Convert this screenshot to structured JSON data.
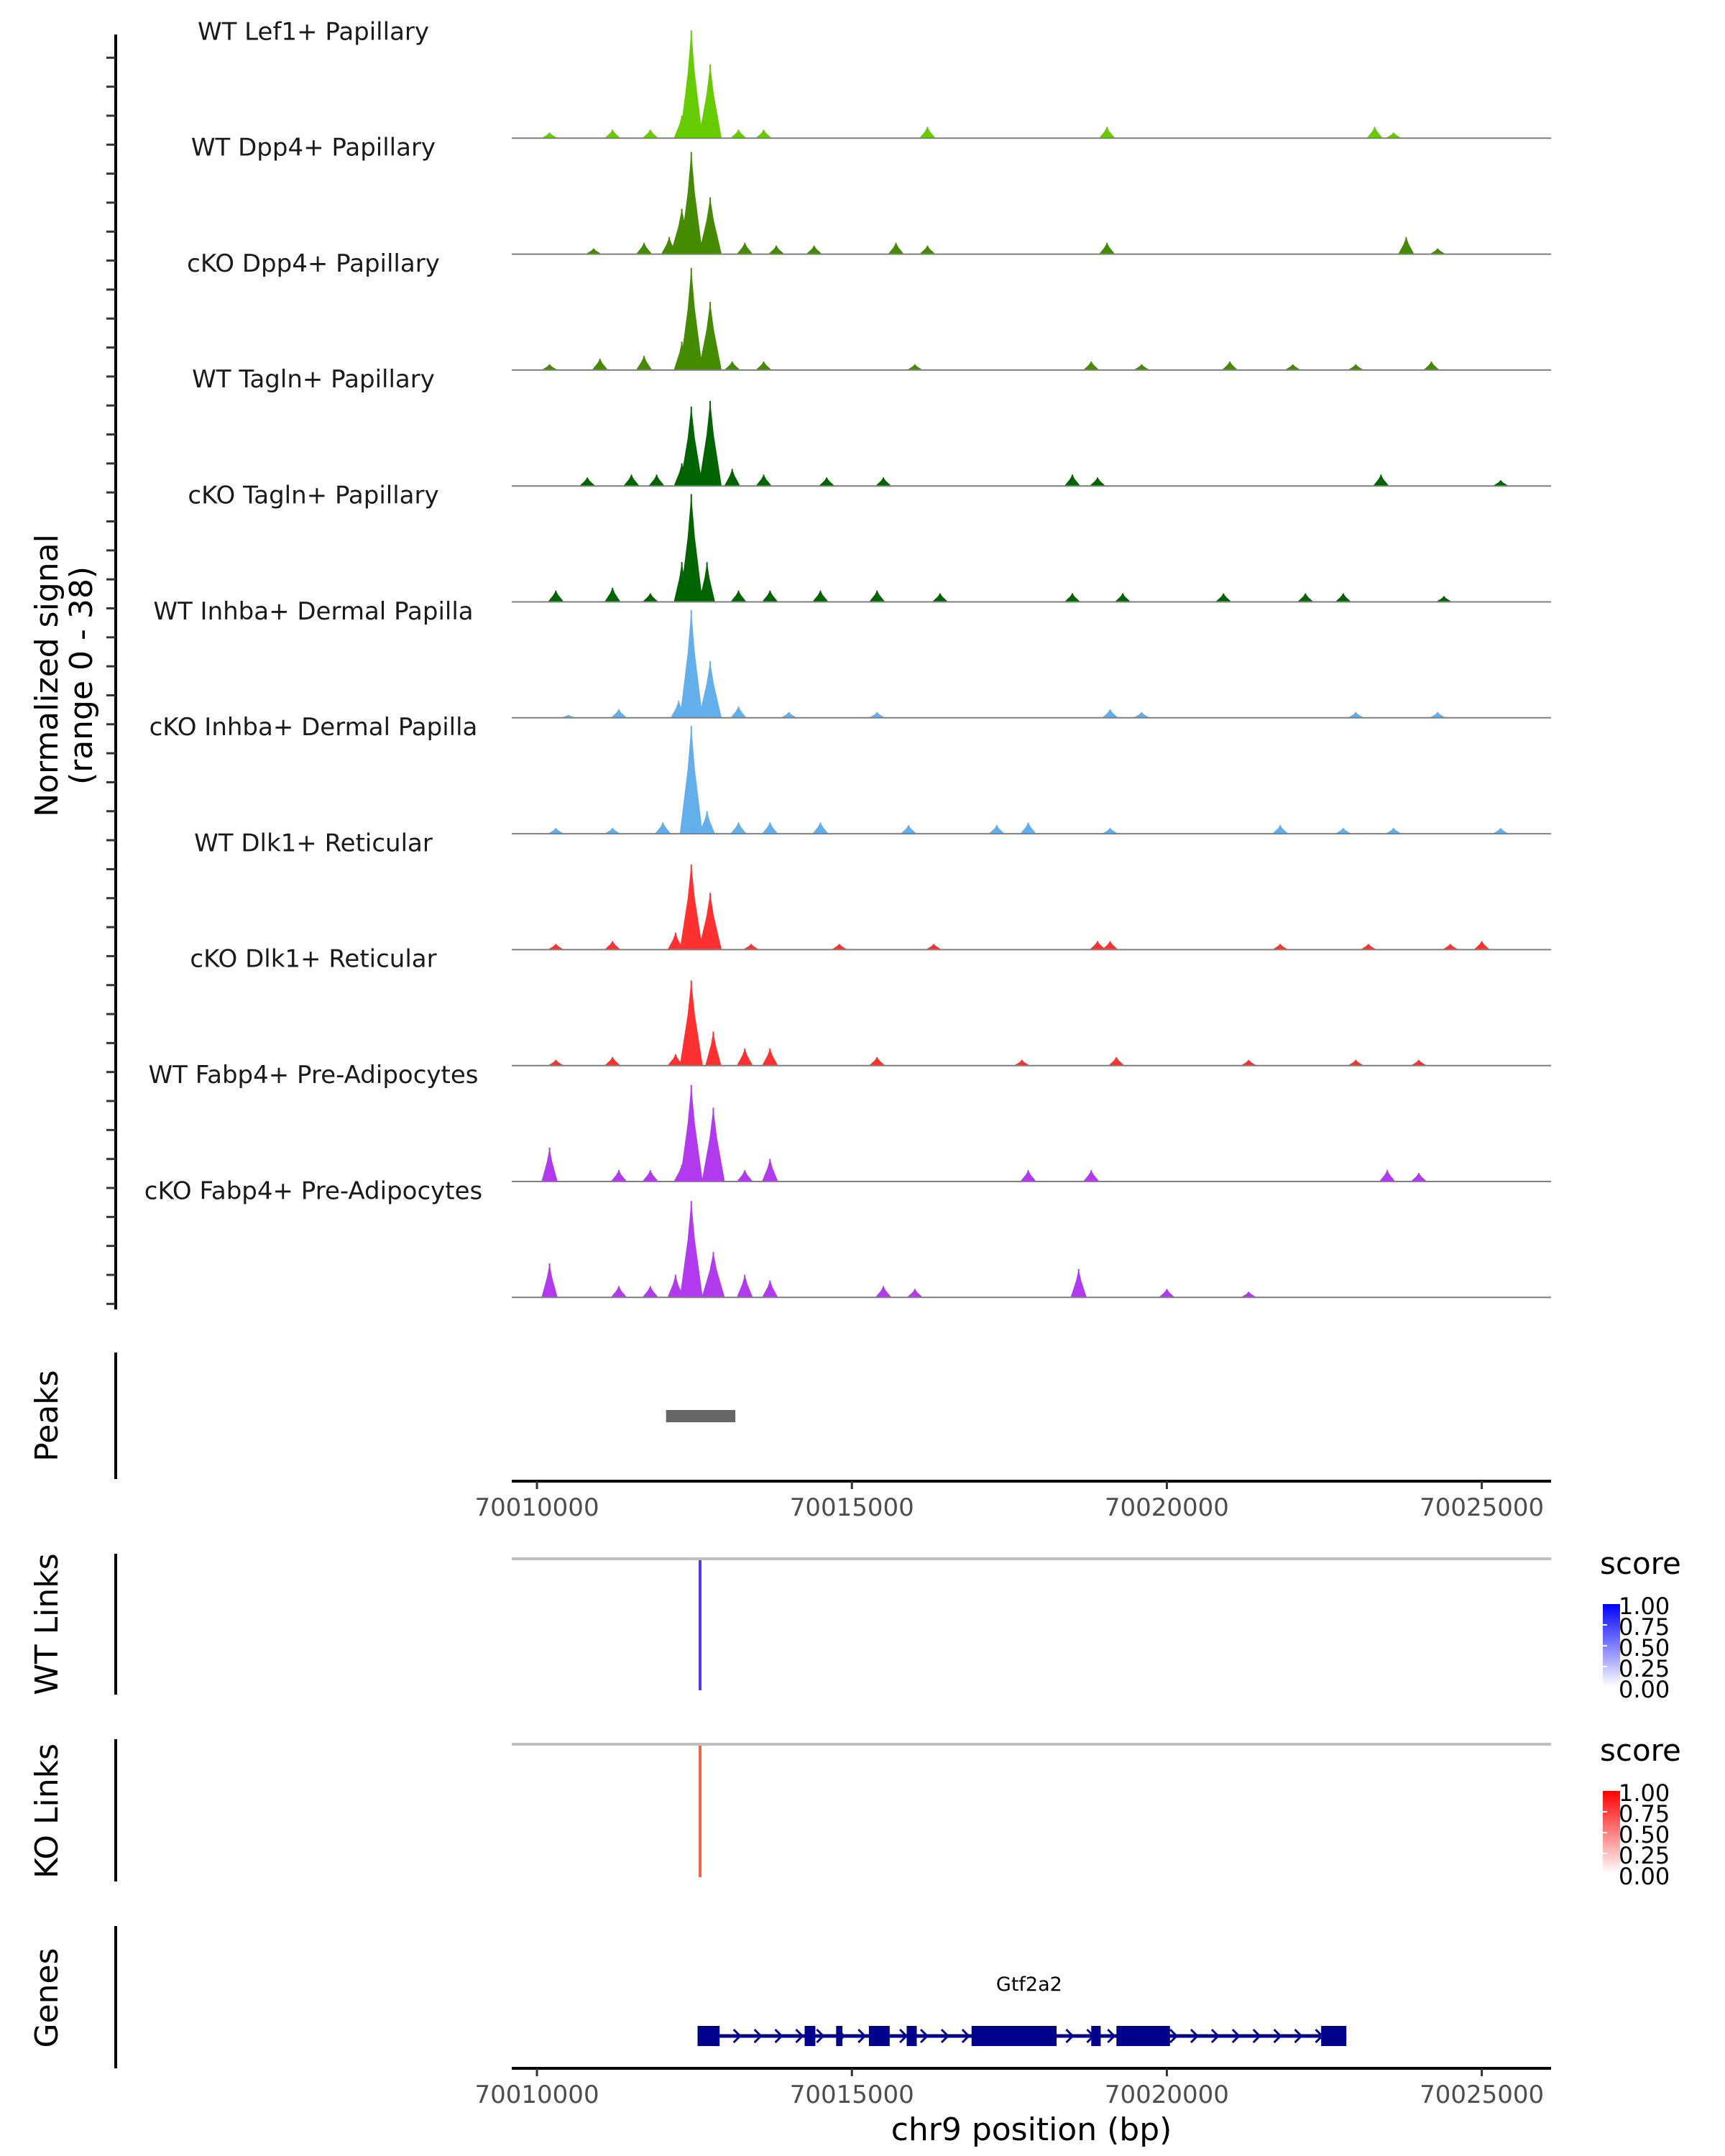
{
  "chart_data": {
    "type": "area",
    "title": "",
    "xlabel": "chr9 position (bp)",
    "ylabel": "Normalized signal\n(range 0 - 38)",
    "ylabel_lines": [
      "Normalized signal",
      "(range 0 - 38)"
    ],
    "xlim": [
      70009600,
      70026100
    ],
    "ylim": [
      0,
      38
    ],
    "x_ticks": [
      70010000,
      70015000,
      70020000,
      70025000
    ],
    "x_tick_labels": [
      "70010000",
      "70015000",
      "70020000",
      "70025000"
    ],
    "grid": false,
    "coverage_tracks": [
      {
        "name": "WT Lef1+ Papillary",
        "color": "#66CC00",
        "peaks": [
          [
            70010200,
            2
          ],
          [
            70011200,
            3
          ],
          [
            70011800,
            3
          ],
          [
            70012300,
            8
          ],
          [
            70012450,
            38
          ],
          [
            70012750,
            26
          ],
          [
            70013200,
            3
          ],
          [
            70013600,
            3
          ],
          [
            70016200,
            4
          ],
          [
            70019050,
            4
          ],
          [
            70023300,
            4
          ],
          [
            70023600,
            2
          ]
        ]
      },
      {
        "name": "WT Dpp4+ Papillary",
        "color": "#458B00",
        "peaks": [
          [
            70010900,
            2
          ],
          [
            70011700,
            4
          ],
          [
            70012100,
            6
          ],
          [
            70012300,
            16
          ],
          [
            70012450,
            36
          ],
          [
            70012750,
            20
          ],
          [
            70013300,
            4
          ],
          [
            70013800,
            3
          ],
          [
            70014400,
            3
          ],
          [
            70015700,
            4
          ],
          [
            70016200,
            3
          ],
          [
            70019050,
            4
          ],
          [
            70023800,
            6
          ],
          [
            70024300,
            2
          ]
        ]
      },
      {
        "name": "cKO Dpp4+ Papillary",
        "color": "#458B00",
        "peaks": [
          [
            70010200,
            2
          ],
          [
            70011000,
            4
          ],
          [
            70011700,
            5
          ],
          [
            70012300,
            10
          ],
          [
            70012450,
            36
          ],
          [
            70012750,
            24
          ],
          [
            70013100,
            3
          ],
          [
            70013600,
            3
          ],
          [
            70016000,
            2
          ],
          [
            70018800,
            3
          ],
          [
            70019600,
            2
          ],
          [
            70021000,
            3
          ],
          [
            70022000,
            2
          ],
          [
            70023000,
            2
          ],
          [
            70024200,
            3
          ]
        ]
      },
      {
        "name": "WT Tagln+ Papillary",
        "color": "#006400",
        "peaks": [
          [
            70010800,
            3
          ],
          [
            70011500,
            4
          ],
          [
            70011900,
            4
          ],
          [
            70012300,
            8
          ],
          [
            70012450,
            28
          ],
          [
            70012750,
            30
          ],
          [
            70013100,
            6
          ],
          [
            70013600,
            4
          ],
          [
            70014600,
            3
          ],
          [
            70015500,
            3
          ],
          [
            70018500,
            4
          ],
          [
            70018900,
            3
          ],
          [
            70023400,
            4
          ],
          [
            70025300,
            2
          ]
        ]
      },
      {
        "name": "cKO Tagln+ Papillary",
        "color": "#006400",
        "peaks": [
          [
            70010300,
            4
          ],
          [
            70011200,
            5
          ],
          [
            70011800,
            3
          ],
          [
            70012300,
            14
          ],
          [
            70012450,
            38
          ],
          [
            70012700,
            14
          ],
          [
            70013200,
            4
          ],
          [
            70013700,
            4
          ],
          [
            70014500,
            4
          ],
          [
            70015400,
            4
          ],
          [
            70016400,
            3
          ],
          [
            70018500,
            3
          ],
          [
            70019300,
            3
          ],
          [
            70020900,
            3
          ],
          [
            70022200,
            3
          ],
          [
            70022800,
            3
          ],
          [
            70024400,
            2
          ]
        ]
      },
      {
        "name": "WT Inhba+ Dermal Papilla",
        "color": "#63AFEB",
        "peaks": [
          [
            70010500,
            1
          ],
          [
            70011300,
            3
          ],
          [
            70012250,
            6
          ],
          [
            70012450,
            38
          ],
          [
            70012750,
            20
          ],
          [
            70013200,
            4
          ],
          [
            70014000,
            2
          ],
          [
            70015400,
            2
          ],
          [
            70019100,
            3
          ],
          [
            70019600,
            2
          ],
          [
            70023000,
            2
          ],
          [
            70024300,
            2
          ]
        ]
      },
      {
        "name": "cKO Inhba+ Dermal Papilla",
        "color": "#63AFEB",
        "peaks": [
          [
            70010300,
            2
          ],
          [
            70011200,
            2
          ],
          [
            70012000,
            4
          ],
          [
            70012450,
            38
          ],
          [
            70012700,
            8
          ],
          [
            70013200,
            4
          ],
          [
            70013700,
            4
          ],
          [
            70014500,
            4
          ],
          [
            70015900,
            3
          ],
          [
            70017300,
            3
          ],
          [
            70017800,
            4
          ],
          [
            70019100,
            2
          ],
          [
            70021800,
            3
          ],
          [
            70022800,
            2
          ],
          [
            70023600,
            2
          ],
          [
            70025300,
            2
          ]
        ]
      },
      {
        "name": "WT Dlk1+ Reticular",
        "color": "#FF3030",
        "peaks": [
          [
            70010300,
            2
          ],
          [
            70011200,
            3
          ],
          [
            70012200,
            6
          ],
          [
            70012450,
            30
          ],
          [
            70012750,
            20
          ],
          [
            70013400,
            2
          ],
          [
            70014800,
            2
          ],
          [
            70016300,
            2
          ],
          [
            70018900,
            3
          ],
          [
            70019100,
            3
          ],
          [
            70021800,
            2
          ],
          [
            70023200,
            2
          ],
          [
            70024500,
            2
          ],
          [
            70025000,
            3
          ]
        ]
      },
      {
        "name": "cKO Dlk1+ Reticular",
        "color": "#FF3030",
        "peaks": [
          [
            70010300,
            2
          ],
          [
            70011200,
            3
          ],
          [
            70012200,
            4
          ],
          [
            70012450,
            30
          ],
          [
            70012800,
            12
          ],
          [
            70013300,
            6
          ],
          [
            70013700,
            6
          ],
          [
            70015400,
            3
          ],
          [
            70017700,
            2
          ],
          [
            70019200,
            3
          ],
          [
            70021300,
            2
          ],
          [
            70023000,
            2
          ],
          [
            70024000,
            2
          ]
        ]
      },
      {
        "name": "WT Fabp4+ Pre-Adipocytes",
        "color": "#B23AEE",
        "peaks": [
          [
            70010200,
            12
          ],
          [
            70011300,
            4
          ],
          [
            70011800,
            4
          ],
          [
            70012300,
            6
          ],
          [
            70012450,
            34
          ],
          [
            70012800,
            26
          ],
          [
            70013300,
            4
          ],
          [
            70013700,
            8
          ],
          [
            70017800,
            4
          ],
          [
            70018800,
            4
          ],
          [
            70023500,
            4
          ],
          [
            70024000,
            3
          ]
        ]
      },
      {
        "name": "cKO Fabp4+ Pre-Adipocytes",
        "color": "#B23AEE",
        "peaks": [
          [
            70010200,
            12
          ],
          [
            70011300,
            4
          ],
          [
            70011800,
            4
          ],
          [
            70012200,
            8
          ],
          [
            70012450,
            34
          ],
          [
            70012800,
            16
          ],
          [
            70013300,
            8
          ],
          [
            70013700,
            6
          ],
          [
            70015500,
            4
          ],
          [
            70016000,
            3
          ],
          [
            70018600,
            10
          ],
          [
            70020000,
            3
          ],
          [
            70021300,
            2
          ]
        ]
      }
    ],
    "peaks_track": {
      "label": "Peaks",
      "regions": [
        [
          70012050,
          70013150
        ]
      ],
      "color": "#666666"
    },
    "links_tracks": [
      {
        "label": "WT Links",
        "links": [
          {
            "start": 70012580,
            "end": 70012600,
            "score": 0.85
          }
        ],
        "color_low": "#FFFFFF",
        "color_high": "#0000FF",
        "link_color": "#5B33F0"
      },
      {
        "label": "KO Links",
        "links": [
          {
            "start": 70012580,
            "end": 70012600,
            "score": 0.7
          }
        ],
        "color_low": "#FFFFFF",
        "color_high": "#FF0000",
        "link_color": "#F4623E"
      }
    ],
    "legends": [
      {
        "title": "score",
        "ticks": [
          "1.00",
          "0.75",
          "0.50",
          "0.25",
          "0.00"
        ],
        "color_high": "#0000FF",
        "color_low": "#FFFFFF"
      },
      {
        "title": "score",
        "ticks": [
          "1.00",
          "0.75",
          "0.50",
          "0.25",
          "0.00"
        ],
        "color_high": "#FF0000",
        "color_low": "#FFFFFF"
      }
    ],
    "genes_track": {
      "label": "Genes",
      "gene_name": "Gtf2a2",
      "strand": "+",
      "start": 70012550,
      "end": 70022850,
      "color": "#00008B",
      "exons": [
        [
          70012550,
          70012900
        ],
        [
          70014250,
          70014420
        ],
        [
          70014750,
          70014850
        ],
        [
          70015270,
          70015600
        ],
        [
          70015870,
          70016030
        ],
        [
          70016900,
          70018250
        ],
        [
          70018800,
          70018950
        ],
        [
          70019200,
          70020050
        ],
        [
          70022450,
          70022850
        ]
      ]
    }
  }
}
